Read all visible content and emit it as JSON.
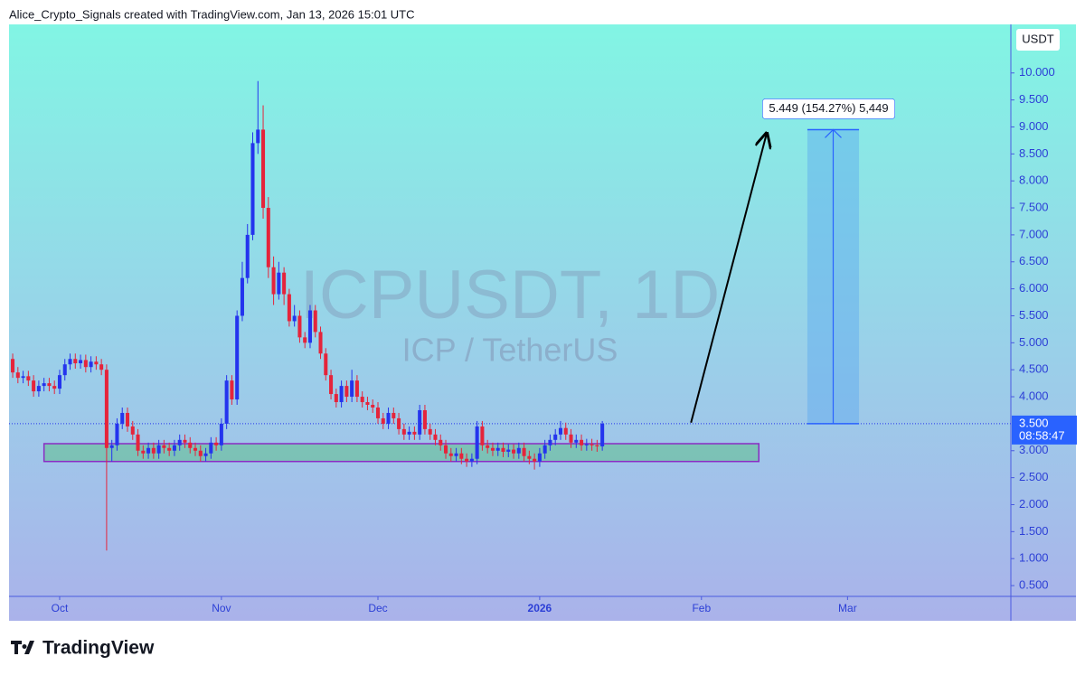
{
  "header": "Alice_Crypto_Signals created with TradingView.com, Jan 13, 2026 15:01 UTC",
  "footer": "TradingView",
  "chart_data": {
    "type": "candlestick",
    "symbol": "ICPUSDT, 1D",
    "description": "ICP / TetherUS",
    "currency": "USDT",
    "up_color": "#2434ee",
    "down_color": "#e5243b",
    "x": [
      -9,
      -8,
      -7,
      -6,
      -5,
      -4,
      -3,
      -2,
      -1,
      0,
      1,
      2,
      3,
      4,
      5,
      6,
      7,
      8,
      9,
      10,
      11,
      12,
      13,
      14,
      15,
      16,
      17,
      18,
      19,
      20,
      21,
      22,
      23,
      24,
      25,
      26,
      27,
      28,
      29,
      30,
      31,
      32,
      33,
      34,
      35,
      36,
      37,
      38,
      39,
      40,
      41,
      42,
      43,
      44,
      45,
      46,
      47,
      48,
      49,
      50,
      51,
      52,
      53,
      54,
      55,
      56,
      57,
      58,
      59,
      60,
      61,
      62,
      63,
      64,
      65,
      66,
      67,
      68,
      69,
      70,
      71,
      72,
      73,
      74,
      75,
      76,
      77,
      78,
      79,
      80,
      81,
      82,
      83,
      84,
      85,
      86,
      87,
      88,
      89,
      90,
      91,
      92,
      93,
      94,
      95,
      96,
      97,
      98,
      99,
      100,
      101,
      102,
      103,
      104
    ],
    "open": [
      4.7,
      4.45,
      4.35,
      4.38,
      4.3,
      4.1,
      4.2,
      4.25,
      4.2,
      4.15,
      4.4,
      4.6,
      4.7,
      4.62,
      4.68,
      4.55,
      4.65,
      4.6,
      4.5,
      3.05,
      3.1,
      3.5,
      3.7,
      3.45,
      3.3,
      3.0,
      2.95,
      3.05,
      2.95,
      3.1,
      3.05,
      3.0,
      3.1,
      3.2,
      3.15,
      3.05,
      3.0,
      2.9,
      2.95,
      3.15,
      3.1,
      3.5,
      4.3,
      3.95,
      5.5,
      6.2,
      7.0,
      8.7,
      8.95,
      7.5,
      6.4,
      5.9,
      6.3,
      5.9,
      5.4,
      5.5,
      5.1,
      5.0,
      5.6,
      5.2,
      4.8,
      4.4,
      4.05,
      3.9,
      4.2,
      4.0,
      4.3,
      4.0,
      3.9,
      3.85,
      3.8,
      3.6,
      3.5,
      3.7,
      3.6,
      3.4,
      3.3,
      3.35,
      3.3,
      3.75,
      3.4,
      3.3,
      3.2,
      3.1,
      2.95,
      2.9,
      2.95,
      2.85,
      2.8,
      2.85,
      3.45,
      3.1,
      3.05,
      3.0,
      3.05,
      2.98,
      3.02,
      2.95,
      3.05,
      2.9,
      2.85,
      2.8,
      2.95,
      3.1,
      3.2,
      3.3,
      3.42,
      3.3,
      3.15,
      3.2,
      3.1,
      3.12,
      3.1,
      3.08
    ],
    "high": [
      4.8,
      4.55,
      4.48,
      4.48,
      4.4,
      4.3,
      4.35,
      4.35,
      4.3,
      4.5,
      4.7,
      4.8,
      4.8,
      4.78,
      4.78,
      4.75,
      4.75,
      4.7,
      4.6,
      3.2,
      3.6,
      3.8,
      3.8,
      3.55,
      3.4,
      3.1,
      3.15,
      3.15,
      3.2,
      3.2,
      3.15,
      3.2,
      3.3,
      3.3,
      3.25,
      3.15,
      3.1,
      3.05,
      3.25,
      3.25,
      3.6,
      4.4,
      4.4,
      5.6,
      6.5,
      7.2,
      8.9,
      9.85,
      9.4,
      7.7,
      6.6,
      6.5,
      6.4,
      6.0,
      5.7,
      5.6,
      5.2,
      5.7,
      5.7,
      5.3,
      4.9,
      4.5,
      4.15,
      4.3,
      4.3,
      4.5,
      4.4,
      4.1,
      4.0,
      3.95,
      3.9,
      3.7,
      3.8,
      3.8,
      3.7,
      3.5,
      3.45,
      3.45,
      3.85,
      3.85,
      3.5,
      3.4,
      3.3,
      3.2,
      3.05,
      3.05,
      3.05,
      2.95,
      2.95,
      3.55,
      3.55,
      3.2,
      3.15,
      3.15,
      3.15,
      3.12,
      3.12,
      3.15,
      3.15,
      3.0,
      2.95,
      3.05,
      3.2,
      3.3,
      3.4,
      3.55,
      3.52,
      3.4,
      3.3,
      3.3,
      3.22,
      3.22,
      3.2,
      3.55
    ],
    "low": [
      4.35,
      4.25,
      4.25,
      4.2,
      4.0,
      4.0,
      4.1,
      4.1,
      4.05,
      4.05,
      4.3,
      4.5,
      4.52,
      4.52,
      4.45,
      4.45,
      4.5,
      4.4,
      1.15,
      2.8,
      3.0,
      3.4,
      3.35,
      3.2,
      2.9,
      2.85,
      2.85,
      2.85,
      2.85,
      2.95,
      2.9,
      2.9,
      3.0,
      3.05,
      2.95,
      2.9,
      2.8,
      2.8,
      2.85,
      3.0,
      3.0,
      3.4,
      3.85,
      3.85,
      5.4,
      6.1,
      6.9,
      8.5,
      7.3,
      6.2,
      5.7,
      5.8,
      5.7,
      5.3,
      5.3,
      5.0,
      4.9,
      4.9,
      5.1,
      4.7,
      4.3,
      3.95,
      3.8,
      3.8,
      3.9,
      3.9,
      3.9,
      3.8,
      3.75,
      3.7,
      3.5,
      3.4,
      3.4,
      3.5,
      3.3,
      3.2,
      3.2,
      3.2,
      3.2,
      3.3,
      3.2,
      3.1,
      3.0,
      2.85,
      2.8,
      2.8,
      2.75,
      2.7,
      2.7,
      2.75,
      3.0,
      2.95,
      2.9,
      2.9,
      2.88,
      2.88,
      2.85,
      2.85,
      2.8,
      2.75,
      2.65,
      2.7,
      2.85,
      3.0,
      3.1,
      3.2,
      3.2,
      3.05,
      3.05,
      3.0,
      3.0,
      3.0,
      2.98,
      3.0
    ],
    "close": [
      4.45,
      4.35,
      4.38,
      4.3,
      4.1,
      4.2,
      4.25,
      4.2,
      4.15,
      4.4,
      4.6,
      4.7,
      4.62,
      4.68,
      4.55,
      4.65,
      4.6,
      4.5,
      3.05,
      3.1,
      3.5,
      3.7,
      3.45,
      3.3,
      3.0,
      2.95,
      3.05,
      2.95,
      3.1,
      3.05,
      3.0,
      3.1,
      3.2,
      3.15,
      3.05,
      3.0,
      2.9,
      2.95,
      3.15,
      3.1,
      3.5,
      4.3,
      3.95,
      5.5,
      6.2,
      7.0,
      8.7,
      8.95,
      7.5,
      6.4,
      5.9,
      6.3,
      5.9,
      5.4,
      5.5,
      5.1,
      5.0,
      5.6,
      5.2,
      4.8,
      4.4,
      4.05,
      3.9,
      4.2,
      4.0,
      4.3,
      4.0,
      3.9,
      3.85,
      3.8,
      3.6,
      3.5,
      3.7,
      3.6,
      3.4,
      3.3,
      3.35,
      3.3,
      3.75,
      3.4,
      3.3,
      3.2,
      3.1,
      2.95,
      2.9,
      2.95,
      2.85,
      2.8,
      2.85,
      3.45,
      3.1,
      3.05,
      3.0,
      3.05,
      2.98,
      3.02,
      2.95,
      3.05,
      2.9,
      2.85,
      2.8,
      2.95,
      3.1,
      3.2,
      3.3,
      3.42,
      3.3,
      3.15,
      3.2,
      3.1,
      3.12,
      3.1,
      3.08,
      3.5
    ],
    "xlim": [
      -9.7,
      182.3
    ],
    "xticks": [
      {
        "value": 0,
        "label": "Oct"
      },
      {
        "value": 31,
        "label": "Nov"
      },
      {
        "value": 61,
        "label": "Dec"
      },
      {
        "value": 92,
        "label": "2026"
      },
      {
        "value": 123,
        "label": "Feb"
      },
      {
        "value": 151,
        "label": "Mar"
      }
    ],
    "ylim": [
      0.3,
      10.9
    ],
    "yticks": [
      {
        "value": 0.5,
        "label": "0.500"
      },
      {
        "value": 1,
        "label": "1.000"
      },
      {
        "value": 1.5,
        "label": "1.500"
      },
      {
        "value": 2,
        "label": "2.000"
      },
      {
        "value": 2.5,
        "label": "2.500"
      },
      {
        "value": 3,
        "label": "3.000"
      },
      {
        "value": 4,
        "label": "4.000"
      },
      {
        "value": 4.5,
        "label": "4.500"
      },
      {
        "value": 5,
        "label": "5.000"
      },
      {
        "value": 5.5,
        "label": "5.500"
      },
      {
        "value": 6,
        "label": "6.000"
      },
      {
        "value": 6.5,
        "label": "6.500"
      },
      {
        "value": 7,
        "label": "7.000"
      },
      {
        "value": 7.5,
        "label": "7.500"
      },
      {
        "value": 8,
        "label": "8.000"
      },
      {
        "value": 8.5,
        "label": "8.500"
      },
      {
        "value": 9,
        "label": "9.000"
      },
      {
        "value": 9.5,
        "label": "9.500"
      },
      {
        "value": 10,
        "label": "10.000"
      }
    ],
    "last_price": {
      "value": 3.5,
      "label": "3.500",
      "countdown": "08:58:47"
    },
    "support_zone": {
      "x": [
        -3,
        134
      ],
      "y": [
        2.8,
        3.13
      ]
    },
    "arrow": {
      "x": [
        121,
        135.5
      ],
      "y": [
        3.52,
        8.88
      ]
    },
    "measure": {
      "x": [
        143.3,
        153.2
      ],
      "y": [
        3.5,
        8.95
      ],
      "label": "5.449 (154.27%) 5,449"
    }
  }
}
